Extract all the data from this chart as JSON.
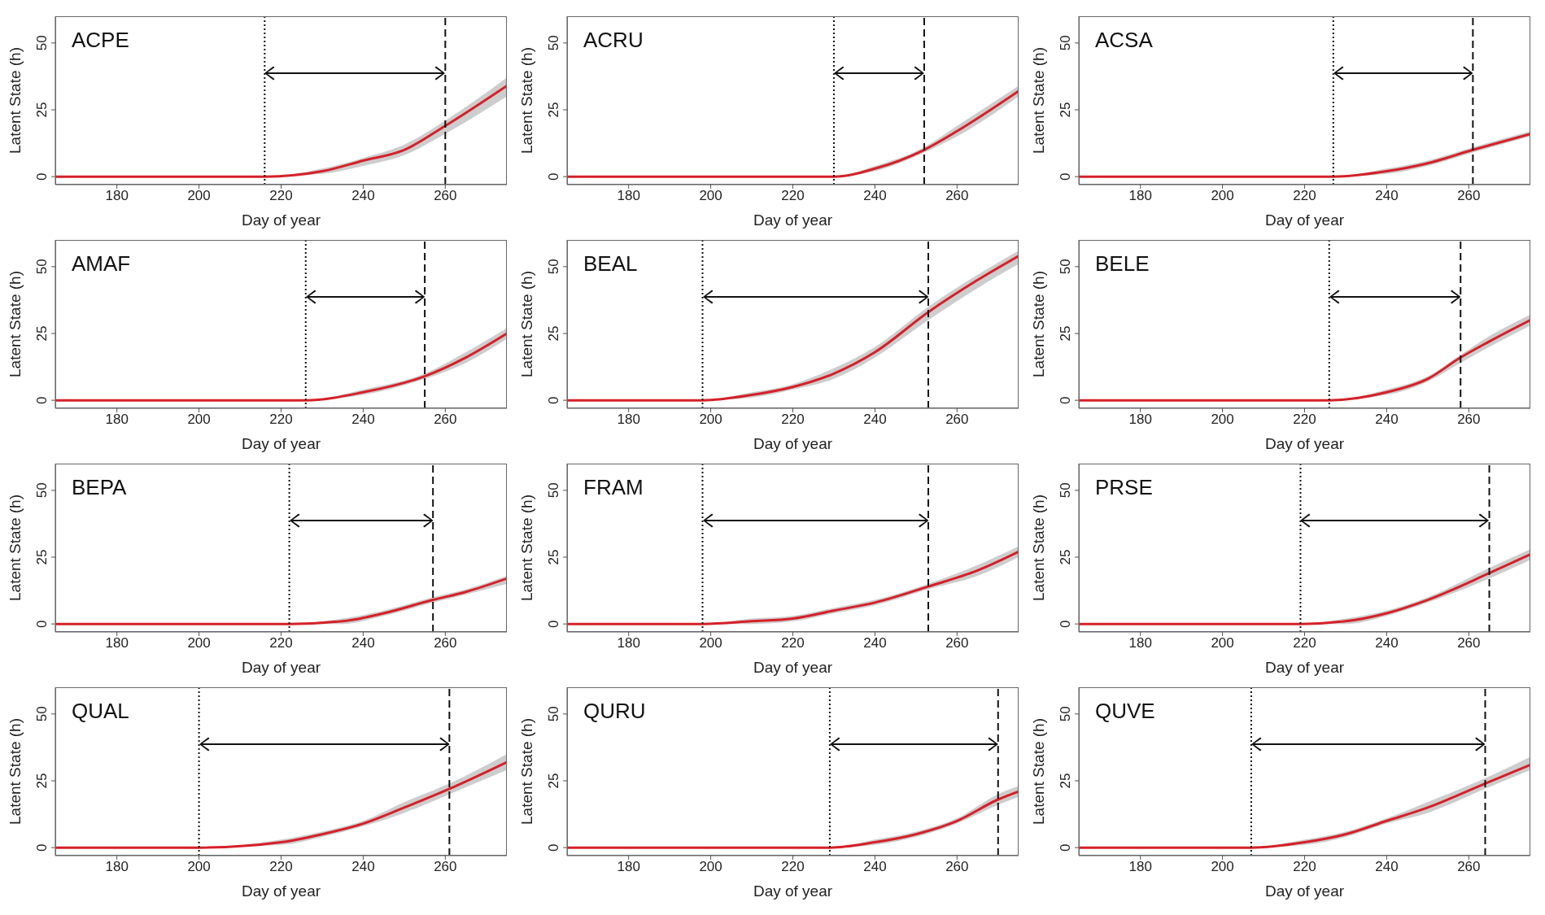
{
  "chart_data": [
    {
      "type": "line",
      "title": "ACPE",
      "xlabel": "Day of year",
      "ylabel": "Latent State (h)",
      "xlim": [
        165,
        275
      ],
      "xticks": [
        180,
        200,
        220,
        240,
        260
      ],
      "ylim": [
        -3,
        60
      ],
      "yticks": [
        0,
        25,
        50
      ],
      "x": [
        165,
        216,
        230,
        240,
        250,
        260,
        275
      ],
      "series": [
        {
          "color": "#d62028",
          "values": [
            0,
            0,
            2,
            6,
            10,
            19,
            34
          ],
          "lower": [
            0,
            0,
            1,
            4,
            8,
            16,
            30
          ],
          "upper": [
            0,
            0,
            3,
            7,
            12,
            21,
            37
          ]
        }
      ],
      "ref_lines": [
        {
          "axis": "x",
          "value": 216,
          "line_style": "dotted"
        },
        {
          "axis": "x",
          "value": 260,
          "line_style": "dashed"
        }
      ]
    },
    {
      "type": "line",
      "title": "ACRU",
      "xlabel": "Day of year",
      "ylabel": "Latent State (h)",
      "xlim": [
        165,
        275
      ],
      "xticks": [
        180,
        200,
        220,
        240,
        260
      ],
      "ylim": [
        -3,
        60
      ],
      "yticks": [
        0,
        25,
        50
      ],
      "x": [
        165,
        230,
        240,
        252,
        260,
        275
      ],
      "series": [
        {
          "color": "#d62028",
          "values": [
            0,
            0,
            3,
            10,
            17,
            32
          ],
          "lower": [
            0,
            0,
            2,
            9,
            15,
            30
          ],
          "upper": [
            0,
            0,
            4,
            11,
            19,
            34
          ]
        }
      ],
      "ref_lines": [
        {
          "axis": "x",
          "value": 230,
          "line_style": "dotted"
        },
        {
          "axis": "x",
          "value": 252,
          "line_style": "dashed"
        }
      ]
    },
    {
      "type": "line",
      "title": "ACSA",
      "xlabel": "Day of year",
      "ylabel": "Latent State (h)",
      "xlim": [
        165,
        275
      ],
      "xticks": [
        180,
        200,
        220,
        240,
        260
      ],
      "ylim": [
        -3,
        60
      ],
      "yticks": [
        0,
        25,
        50
      ],
      "x": [
        165,
        227,
        240,
        250,
        261,
        275
      ],
      "series": [
        {
          "color": "#d62028",
          "values": [
            0,
            0,
            2,
            5,
            10,
            16
          ],
          "lower": [
            0,
            0,
            1,
            4,
            9,
            15
          ],
          "upper": [
            0,
            0,
            3,
            6,
            11,
            17
          ]
        }
      ],
      "ref_lines": [
        {
          "axis": "x",
          "value": 227,
          "line_style": "dotted"
        },
        {
          "axis": "x",
          "value": 261,
          "line_style": "dashed"
        }
      ]
    },
    {
      "type": "line",
      "title": "AMAF",
      "xlabel": "Day of year",
      "ylabel": "Latent State (h)",
      "xlim": [
        165,
        275
      ],
      "xticks": [
        180,
        200,
        220,
        240,
        260
      ],
      "ylim": [
        -3,
        60
      ],
      "yticks": [
        0,
        25,
        50
      ],
      "x": [
        165,
        226,
        240,
        255,
        265,
        275
      ],
      "series": [
        {
          "color": "#d62028",
          "values": [
            0,
            0,
            3,
            9,
            16,
            25
          ],
          "lower": [
            0,
            0,
            2,
            8,
            14,
            23
          ],
          "upper": [
            0,
            0,
            4,
            10,
            18,
            27
          ]
        }
      ],
      "ref_lines": [
        {
          "axis": "x",
          "value": 226,
          "line_style": "dotted"
        },
        {
          "axis": "x",
          "value": 255,
          "line_style": "dashed"
        }
      ]
    },
    {
      "type": "line",
      "title": "BEAL",
      "xlabel": "Day of year",
      "ylabel": "Latent State (h)",
      "xlim": [
        165,
        275
      ],
      "xticks": [
        180,
        200,
        220,
        240,
        260
      ],
      "ylim": [
        -3,
        60
      ],
      "yticks": [
        0,
        25,
        50
      ],
      "x": [
        165,
        198,
        210,
        220,
        230,
        240,
        253,
        265,
        275
      ],
      "series": [
        {
          "color": "#d62028",
          "values": [
            0,
            0,
            2,
            5,
            10,
            18,
            33,
            45,
            54
          ],
          "lower": [
            0,
            0,
            1,
            4,
            8,
            16,
            30,
            42,
            51
          ],
          "upper": [
            0,
            0,
            3,
            6,
            12,
            20,
            35,
            47,
            56
          ]
        }
      ],
      "ref_lines": [
        {
          "axis": "x",
          "value": 198,
          "line_style": "dotted"
        },
        {
          "axis": "x",
          "value": 253,
          "line_style": "dashed"
        }
      ]
    },
    {
      "type": "line",
      "title": "BELE",
      "xlabel": "Day of year",
      "ylabel": "Latent State (h)",
      "xlim": [
        165,
        275
      ],
      "xticks": [
        180,
        200,
        220,
        240,
        260
      ],
      "ylim": [
        -3,
        60
      ],
      "yticks": [
        0,
        25,
        50
      ],
      "x": [
        165,
        226,
        240,
        250,
        258,
        265,
        275
      ],
      "series": [
        {
          "color": "#d62028",
          "values": [
            0,
            0,
            3,
            8,
            16,
            22,
            30
          ],
          "lower": [
            0,
            0,
            2,
            7,
            14,
            20,
            28
          ],
          "upper": [
            0,
            0,
            4,
            9,
            17,
            24,
            32
          ]
        }
      ],
      "ref_lines": [
        {
          "axis": "x",
          "value": 226,
          "line_style": "dotted"
        },
        {
          "axis": "x",
          "value": 258,
          "line_style": "dashed"
        }
      ]
    },
    {
      "type": "line",
      "title": "BEPA",
      "xlabel": "Day of year",
      "ylabel": "Latent State (h)",
      "xlim": [
        165,
        275
      ],
      "xticks": [
        180,
        200,
        220,
        240,
        260
      ],
      "ylim": [
        -3,
        60
      ],
      "yticks": [
        0,
        25,
        50
      ],
      "x": [
        165,
        222,
        235,
        245,
        257,
        265,
        275
      ],
      "series": [
        {
          "color": "#d62028",
          "values": [
            0,
            0,
            1,
            4,
            9,
            12,
            17
          ],
          "lower": [
            0,
            0,
            0,
            3,
            8,
            11,
            15
          ],
          "upper": [
            0,
            0,
            2,
            5,
            10,
            13,
            18
          ]
        }
      ],
      "ref_lines": [
        {
          "axis": "x",
          "value": 222,
          "line_style": "dotted"
        },
        {
          "axis": "x",
          "value": 257,
          "line_style": "dashed"
        }
      ]
    },
    {
      "type": "line",
      "title": "FRAM",
      "xlabel": "Day of year",
      "ylabel": "Latent State (h)",
      "xlim": [
        165,
        275
      ],
      "xticks": [
        180,
        200,
        220,
        240,
        260
      ],
      "ylim": [
        -3,
        60
      ],
      "yticks": [
        0,
        25,
        50
      ],
      "x": [
        165,
        198,
        210,
        220,
        230,
        240,
        253,
        265,
        275
      ],
      "series": [
        {
          "color": "#d62028",
          "values": [
            0,
            0,
            1,
            2,
            5,
            8,
            14,
            20,
            27
          ],
          "lower": [
            0,
            0,
            0,
            1,
            4,
            7,
            13,
            18,
            25
          ],
          "upper": [
            0,
            0,
            2,
            3,
            6,
            9,
            15,
            22,
            29
          ]
        }
      ],
      "ref_lines": [
        {
          "axis": "x",
          "value": 198,
          "line_style": "dotted"
        },
        {
          "axis": "x",
          "value": 253,
          "line_style": "dashed"
        }
      ]
    },
    {
      "type": "line",
      "title": "PRSE",
      "xlabel": "Day of year",
      "ylabel": "Latent State (h)",
      "xlim": [
        165,
        275
      ],
      "xticks": [
        180,
        200,
        220,
        240,
        260
      ],
      "ylim": [
        -3,
        60
      ],
      "yticks": [
        0,
        25,
        50
      ],
      "x": [
        165,
        219,
        230,
        240,
        250,
        265,
        275
      ],
      "series": [
        {
          "color": "#d62028",
          "values": [
            0,
            0,
            1,
            4,
            9,
            19,
            26
          ],
          "lower": [
            0,
            0,
            0,
            3,
            8,
            17,
            24
          ],
          "upper": [
            0,
            0,
            2,
            5,
            10,
            21,
            28
          ]
        }
      ],
      "ref_lines": [
        {
          "axis": "x",
          "value": 219,
          "line_style": "dotted"
        },
        {
          "axis": "x",
          "value": 265,
          "line_style": "dashed"
        }
      ]
    },
    {
      "type": "line",
      "title": "QUAL",
      "xlabel": "Day of year",
      "ylabel": "Latent State (h)",
      "xlim": [
        165,
        275
      ],
      "xticks": [
        180,
        200,
        220,
        240,
        260
      ],
      "ylim": [
        -3,
        60
      ],
      "yticks": [
        0,
        25,
        50
      ],
      "x": [
        165,
        200,
        220,
        230,
        240,
        250,
        261,
        275
      ],
      "series": [
        {
          "color": "#d62028",
          "values": [
            0,
            0,
            2,
            5,
            9,
            15,
            22,
            32
          ],
          "lower": [
            0,
            0,
            1,
            4,
            8,
            13,
            20,
            29
          ],
          "upper": [
            0,
            0,
            3,
            6,
            10,
            17,
            24,
            35
          ]
        }
      ],
      "ref_lines": [
        {
          "axis": "x",
          "value": 200,
          "line_style": "dotted"
        },
        {
          "axis": "x",
          "value": 261,
          "line_style": "dashed"
        }
      ]
    },
    {
      "type": "line",
      "title": "QURU",
      "xlabel": "Day of year",
      "ylabel": "Latent State (h)",
      "xlim": [
        165,
        275
      ],
      "xticks": [
        180,
        200,
        220,
        240,
        260
      ],
      "ylim": [
        -3,
        60
      ],
      "yticks": [
        0,
        25,
        50
      ],
      "x": [
        165,
        229,
        240,
        250,
        260,
        270,
        275
      ],
      "series": [
        {
          "color": "#d62028",
          "values": [
            0,
            0,
            2,
            5,
            10,
            18,
            21
          ],
          "lower": [
            0,
            0,
            1,
            4,
            9,
            16,
            19
          ],
          "upper": [
            0,
            0,
            3,
            6,
            11,
            20,
            23
          ]
        }
      ],
      "ref_lines": [
        {
          "axis": "x",
          "value": 229,
          "line_style": "dotted"
        },
        {
          "axis": "x",
          "value": 270,
          "line_style": "dashed"
        }
      ]
    },
    {
      "type": "line",
      "title": "QUVE",
      "xlabel": "Day of year",
      "ylabel": "Latent State (h)",
      "xlim": [
        165,
        275
      ],
      "xticks": [
        180,
        200,
        220,
        240,
        260
      ],
      "ylim": [
        -3,
        60
      ],
      "yticks": [
        0,
        25,
        50
      ],
      "x": [
        165,
        207,
        220,
        230,
        240,
        250,
        264,
        275
      ],
      "series": [
        {
          "color": "#d62028",
          "values": [
            0,
            0,
            2,
            5,
            10,
            15,
            24,
            31
          ],
          "lower": [
            0,
            0,
            1,
            4,
            9,
            13,
            22,
            29
          ],
          "upper": [
            0,
            0,
            3,
            6,
            11,
            17,
            26,
            34
          ]
        }
      ],
      "ref_lines": [
        {
          "axis": "x",
          "value": 207,
          "line_style": "dotted"
        },
        {
          "axis": "x",
          "value": 264,
          "line_style": "dashed"
        }
      ]
    }
  ]
}
